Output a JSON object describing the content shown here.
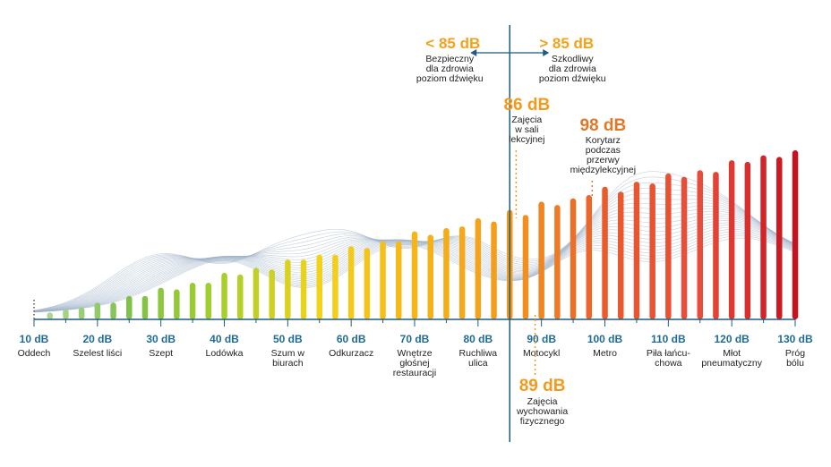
{
  "chart_data": {
    "type": "bar",
    "title": "",
    "xlabel": "",
    "ylabel": "",
    "unit": "dB",
    "x_range": [
      10,
      130
    ],
    "tick_step": 10,
    "ticks": [
      {
        "db": 10,
        "label": "10 dB",
        "desc": [
          "Oddech"
        ]
      },
      {
        "db": 20,
        "label": "20 dB",
        "desc": [
          "Szelest liści"
        ]
      },
      {
        "db": 30,
        "label": "30 dB",
        "desc": [
          "Szept"
        ]
      },
      {
        "db": 40,
        "label": "40 dB",
        "desc": [
          "Lodówka"
        ]
      },
      {
        "db": 50,
        "label": "50 dB",
        "desc": [
          "Szum w",
          "biurach"
        ]
      },
      {
        "db": 60,
        "label": "60 dB",
        "desc": [
          "Odkurzacz"
        ]
      },
      {
        "db": 70,
        "label": "70 dB",
        "desc": [
          "Wnętrze",
          "głośnej",
          "restauracji"
        ]
      },
      {
        "db": 80,
        "label": "80 dB",
        "desc": [
          "Ruchliwa",
          "ulica"
        ]
      },
      {
        "db": 90,
        "label": "90 dB",
        "desc": [
          "Motocykl"
        ]
      },
      {
        "db": 100,
        "label": "100 dB",
        "desc": [
          "Metro"
        ]
      },
      {
        "db": 110,
        "label": "110 dB",
        "desc": [
          "Piła łańcu-",
          "chowa"
        ]
      },
      {
        "db": 120,
        "label": "120 dB",
        "desc": [
          "Młot",
          "pneumatyczny"
        ]
      },
      {
        "db": 130,
        "label": "130 dB",
        "desc": [
          "Próg",
          "bólu"
        ]
      }
    ],
    "bars": [
      {
        "db": 10,
        "level": 0.0
      },
      {
        "db": 12.5,
        "level": 0.02
      },
      {
        "db": 15,
        "level": 0.04
      },
      {
        "db": 17.5,
        "level": 0.05
      },
      {
        "db": 20,
        "level": 0.08
      },
      {
        "db": 22.5,
        "level": 0.08
      },
      {
        "db": 25,
        "level": 0.12
      },
      {
        "db": 27.5,
        "level": 0.12
      },
      {
        "db": 30,
        "level": 0.17
      },
      {
        "db": 32.5,
        "level": 0.16
      },
      {
        "db": 35,
        "level": 0.2
      },
      {
        "db": 37.5,
        "level": 0.2
      },
      {
        "db": 40,
        "level": 0.26
      },
      {
        "db": 42.5,
        "level": 0.25
      },
      {
        "db": 45,
        "level": 0.29
      },
      {
        "db": 47.5,
        "level": 0.28
      },
      {
        "db": 50,
        "level": 0.34
      },
      {
        "db": 52.5,
        "level": 0.34
      },
      {
        "db": 55,
        "level": 0.37
      },
      {
        "db": 57.5,
        "level": 0.37
      },
      {
        "db": 60,
        "level": 0.42
      },
      {
        "db": 62.5,
        "level": 0.41
      },
      {
        "db": 65,
        "level": 0.45
      },
      {
        "db": 67.5,
        "level": 0.45
      },
      {
        "db": 70,
        "level": 0.51
      },
      {
        "db": 72.5,
        "level": 0.49
      },
      {
        "db": 75,
        "level": 0.53
      },
      {
        "db": 77.5,
        "level": 0.54
      },
      {
        "db": 80,
        "level": 0.59
      },
      {
        "db": 82.5,
        "level": 0.57
      },
      {
        "db": 85,
        "level": 0.64
      },
      {
        "db": 87.5,
        "level": 0.61
      },
      {
        "db": 90,
        "level": 0.69
      },
      {
        "db": 92.5,
        "level": 0.67
      },
      {
        "db": 95,
        "level": 0.71
      },
      {
        "db": 97.5,
        "level": 0.73
      },
      {
        "db": 100,
        "level": 0.78
      },
      {
        "db": 102.5,
        "level": 0.75
      },
      {
        "db": 105,
        "level": 0.81
      },
      {
        "db": 107.5,
        "level": 0.8
      },
      {
        "db": 110,
        "level": 0.86
      },
      {
        "db": 112.5,
        "level": 0.84
      },
      {
        "db": 115,
        "level": 0.88
      },
      {
        "db": 117.5,
        "level": 0.87
      },
      {
        "db": 120,
        "level": 0.94
      },
      {
        "db": 122.5,
        "level": 0.93
      },
      {
        "db": 125,
        "level": 0.97
      },
      {
        "db": 127.5,
        "level": 0.96
      },
      {
        "db": 130,
        "level": 1.0
      }
    ],
    "threshold": {
      "db": 85,
      "left_value": "< 85 dB",
      "left_desc": [
        "Bezpieczny",
        "dla zdrowia",
        "poziom dźwięku"
      ],
      "right_value": "> 85 dB",
      "right_desc": [
        "Szkodliwy",
        "dla zdrowia",
        "poziom dźwięku"
      ]
    },
    "annotations": [
      {
        "db": 86,
        "value": "86 dB",
        "desc": [
          "Zajęcia",
          "w sali",
          "lekcyjnej"
        ],
        "placement": "above",
        "color": "#f39a1c"
      },
      {
        "db": 98,
        "value": "98 dB",
        "desc": [
          "Korytarz",
          "podczas",
          "przerwy",
          "międzylekcyjnej"
        ],
        "placement": "above",
        "color": "#e0782a"
      },
      {
        "db": 89,
        "value": "89 dB",
        "desc": [
          "Zajęcia",
          "wychowania",
          "fizycznego"
        ],
        "placement": "below",
        "color": "#f39a1c"
      }
    ],
    "colors": {
      "axis": "#1f5a82",
      "tick_label": "#1f6b96",
      "threshold_value": "#f3a21b",
      "wave": "#9fb3c8",
      "gradient": [
        "#b5dba0",
        "#7fc14a",
        "#a8cf2a",
        "#f3d31a",
        "#f6b517",
        "#f39a1c",
        "#ea5a2b",
        "#e84c3a",
        "#c8101e"
      ]
    }
  }
}
